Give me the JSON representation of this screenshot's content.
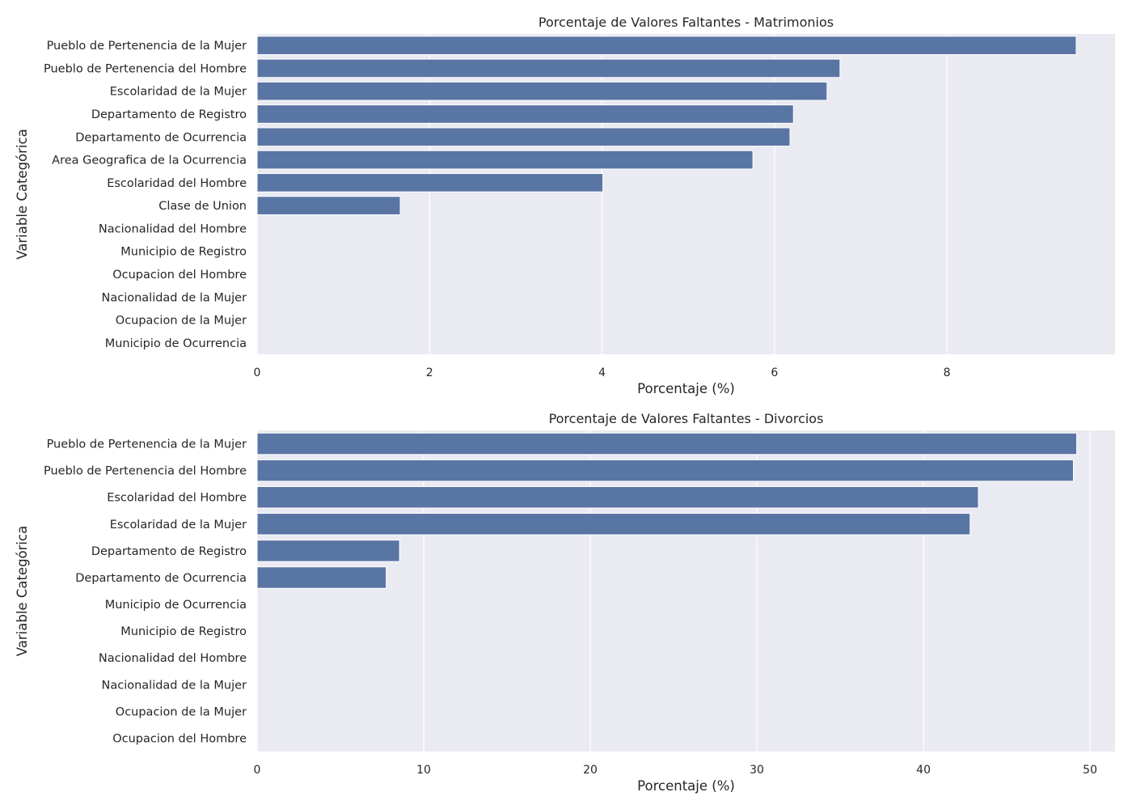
{
  "chart_data": [
    {
      "type": "bar",
      "orientation": "horizontal",
      "title": "Porcentaje de Valores Faltantes - Matrimonios",
      "xlabel": "Porcentaje (%)",
      "ylabel": "Variable Categórica",
      "xlim": [
        0,
        9.95
      ],
      "xticks": [
        0,
        2,
        4,
        6,
        8
      ],
      "grid": true,
      "categories": [
        "Pueblo de Pertenencia de la Mujer",
        "Pueblo de Pertenencia del Hombre",
        "Escolaridad de la Mujer",
        "Departamento de Registro",
        "Departamento de Ocurrencia",
        "Area Geografica de la Ocurrencia",
        "Escolaridad del Hombre",
        "Clase de Union",
        "Nacionalidad del Hombre",
        "Municipio de Registro",
        "Ocupacion del Hombre",
        "Nacionalidad de la Mujer",
        "Ocupacion de la Mujer",
        "Municipio de Ocurrencia"
      ],
      "values": [
        9.5,
        6.76,
        6.61,
        6.22,
        6.18,
        5.75,
        4.01,
        1.66,
        0,
        0,
        0,
        0,
        0,
        0
      ]
    },
    {
      "type": "bar",
      "orientation": "horizontal",
      "title": "Porcentaje de Valores Faltantes - Divorcios",
      "xlabel": "Porcentaje (%)",
      "ylabel": "Variable Categórica",
      "xlim": [
        0,
        51.5
      ],
      "xticks": [
        0,
        10,
        20,
        30,
        40,
        50
      ],
      "grid": true,
      "categories": [
        "Pueblo de Pertenencia de la Mujer",
        "Pueblo de Pertenencia del Hombre",
        "Escolaridad del Hombre",
        "Escolaridad de la Mujer",
        "Departamento de Registro",
        "Departamento de Ocurrencia",
        "Municipio de Ocurrencia",
        "Municipio de Registro",
        "Nacionalidad del Hombre",
        "Nacionalidad de la Mujer",
        "Ocupacion de la Mujer",
        "Ocupacion del Hombre"
      ],
      "values": [
        49.2,
        49.0,
        43.3,
        42.8,
        8.55,
        7.75,
        0,
        0,
        0,
        0,
        0,
        0
      ]
    }
  ],
  "colors": {
    "bar": "#5975a4",
    "plot_background": "#eaeaf2",
    "grid": "#ffffff",
    "text": "#262626"
  }
}
